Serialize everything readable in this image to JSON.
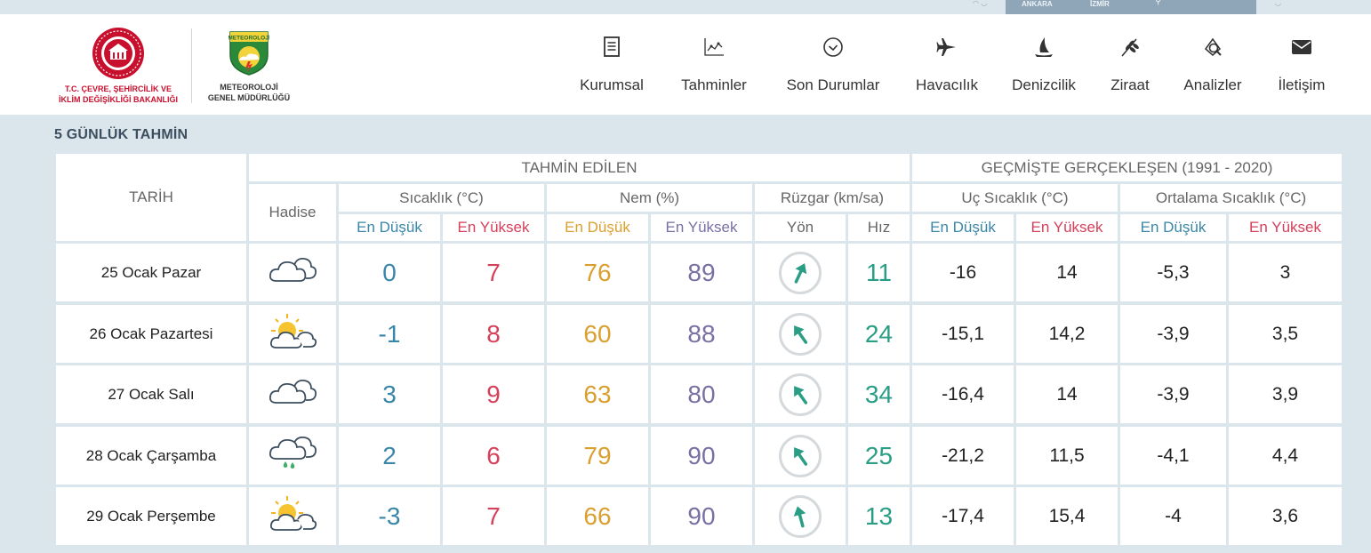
{
  "top_strip": {
    "cities": [
      "ANKARA",
      "İZMİR"
    ]
  },
  "logos": {
    "ministry": {
      "line1": "T.C. ÇEVRE, ŞEHİRCİLİK VE",
      "line2": "İKLİM DEĞİŞİKLİĞİ BAKANLIĞI"
    },
    "mgm": {
      "badge": "METEOROLOJİ",
      "line1": "METEOROLOJİ",
      "line2": "GENEL MÜDÜRLÜĞÜ"
    }
  },
  "nav": [
    {
      "label": "Kurumsal",
      "icon": "document-icon"
    },
    {
      "label": "Tahminler",
      "icon": "chart-icon"
    },
    {
      "label": "Son Durumlar",
      "icon": "check-circle-icon"
    },
    {
      "label": "Havacılık",
      "icon": "airplane-icon"
    },
    {
      "label": "Denizcilik",
      "icon": "sailboat-icon"
    },
    {
      "label": "Ziraat",
      "icon": "wheat-icon"
    },
    {
      "label": "Analizler",
      "icon": "analysis-icon"
    },
    {
      "label": "İletişim",
      "icon": "envelope-icon"
    }
  ],
  "section_title": "5 GÜNLÜK TAHMİN",
  "table": {
    "headers": {
      "date": "TARİH",
      "forecast": "TAHMİN EDİLEN",
      "history": "GEÇMİŞTE GERÇEKLEŞEN (1991 - 2020)",
      "phenomenon": "Hadise",
      "temperature": "Sıcaklık (°C)",
      "humidity": "Nem (%)",
      "wind": "Rüzgar (km/sa)",
      "extreme_temp": "Uç Sıcaklık (°C)",
      "avg_temp": "Ortalama Sıcaklık (°C)",
      "min": "En Düşük",
      "max": "En Yüksek",
      "direction": "Yön",
      "speed": "Hız"
    },
    "rows": [
      {
        "date": "25 Ocak Pazar",
        "icon": "cloudy-icon",
        "t_min": "0",
        "t_max": "7",
        "h_min": "76",
        "h_max": "89",
        "wind_dir": "wind-arrow-ne",
        "wind_speed": "11",
        "ext_min": "-16",
        "ext_max": "14",
        "avg_min": "-5,3",
        "avg_max": "3"
      },
      {
        "date": "26 Ocak Pazartesi",
        "icon": "partly-cloudy-icon",
        "t_min": "-1",
        "t_max": "8",
        "h_min": "60",
        "h_max": "88",
        "wind_dir": "wind-arrow-nw",
        "wind_speed": "24",
        "ext_min": "-15,1",
        "ext_max": "14,2",
        "avg_min": "-3,9",
        "avg_max": "3,5"
      },
      {
        "date": "27 Ocak Salı",
        "icon": "cloudy-icon",
        "t_min": "3",
        "t_max": "9",
        "h_min": "63",
        "h_max": "80",
        "wind_dir": "wind-arrow-nw",
        "wind_speed": "34",
        "ext_min": "-16,4",
        "ext_max": "14",
        "avg_min": "-3,9",
        "avg_max": "3,9"
      },
      {
        "date": "28 Ocak Çarşamba",
        "icon": "rain-icon",
        "t_min": "2",
        "t_max": "6",
        "h_min": "79",
        "h_max": "90",
        "wind_dir": "wind-arrow-nw",
        "wind_speed": "25",
        "ext_min": "-21,2",
        "ext_max": "11,5",
        "avg_min": "-4,1",
        "avg_max": "4,4"
      },
      {
        "date": "29 Ocak Perşembe",
        "icon": "partly-cloudy-icon",
        "t_min": "-3",
        "t_max": "7",
        "h_min": "66",
        "h_max": "90",
        "wind_dir": "wind-arrow-n",
        "wind_speed": "13",
        "ext_min": "-17,4",
        "ext_max": "15,4",
        "avg_min": "-4",
        "avg_max": "3,6"
      }
    ]
  },
  "colors": {
    "min_temp": "#3a86a8",
    "max_temp": "#d6405a",
    "humidity_min": "#d9a030",
    "humidity_max": "#7a6fa3",
    "wind": "#2a9d85"
  }
}
